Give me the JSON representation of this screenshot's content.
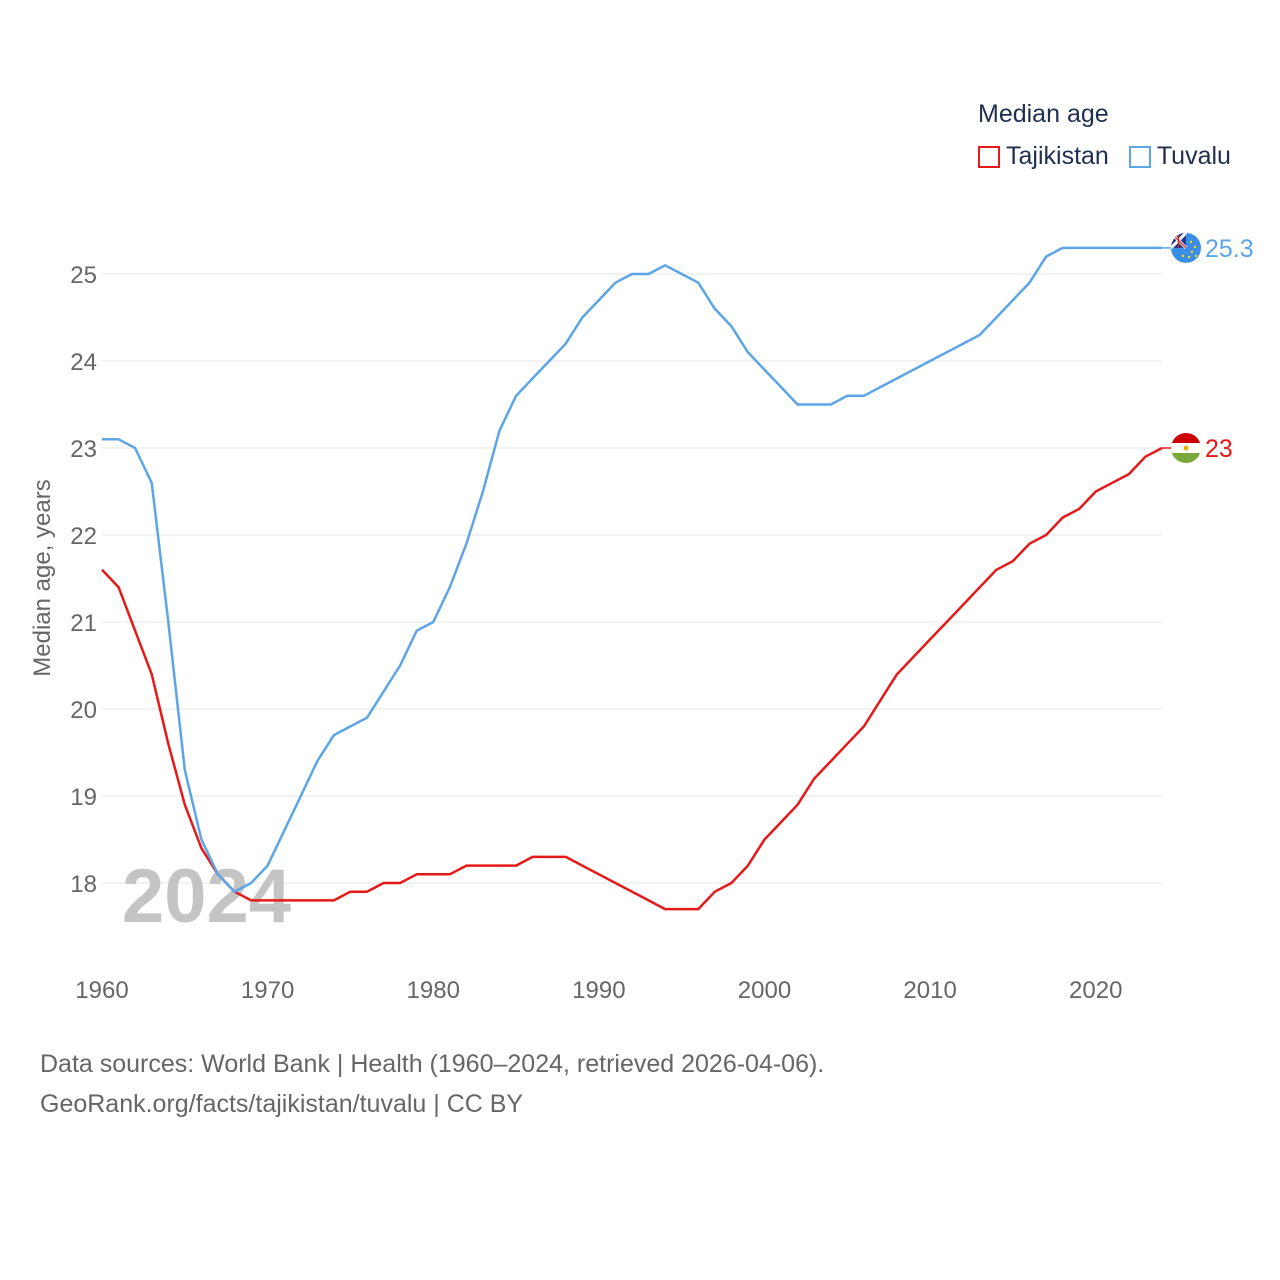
{
  "legend": {
    "title": "Median age",
    "items": [
      {
        "label": "Tajikistan",
        "color": "#e61919"
      },
      {
        "label": "Tuvalu",
        "color": "#5ca5e6"
      }
    ]
  },
  "footer": {
    "line1": "Data sources: World Bank | Health (1960–2024, retrieved 2026-04-06).",
    "line2": "GeoRank.org/facts/tajikistan/tuvalu | CC BY"
  },
  "chart_data": {
    "type": "line",
    "title": "Median age",
    "xlabel": "",
    "ylabel": "Median age, years",
    "year_watermark": "2024",
    "xlim": [
      1960,
      2024
    ],
    "ylim": [
      17.0,
      25.9
    ],
    "x_ticks": [
      1960,
      1970,
      1980,
      1990,
      2000,
      2010,
      2020
    ],
    "y_ticks": [
      18,
      19,
      20,
      21,
      22,
      23,
      24,
      25
    ],
    "grid": true,
    "x": [
      1960,
      1961,
      1962,
      1963,
      1964,
      1965,
      1966,
      1967,
      1968,
      1969,
      1970,
      1971,
      1972,
      1973,
      1974,
      1975,
      1976,
      1977,
      1978,
      1979,
      1980,
      1981,
      1982,
      1983,
      1984,
      1985,
      1986,
      1987,
      1988,
      1989,
      1990,
      1991,
      1992,
      1993,
      1994,
      1995,
      1996,
      1997,
      1998,
      1999,
      2000,
      2001,
      2002,
      2003,
      2004,
      2005,
      2006,
      2007,
      2008,
      2009,
      2010,
      2011,
      2012,
      2013,
      2014,
      2015,
      2016,
      2017,
      2018,
      2019,
      2020,
      2021,
      2022,
      2023,
      2024
    ],
    "series": [
      {
        "name": "Tajikistan",
        "color": "#e61919",
        "end_label": "23",
        "values": [
          21.6,
          21.4,
          20.9,
          20.4,
          19.6,
          18.9,
          18.4,
          18.1,
          17.9,
          17.8,
          17.8,
          17.8,
          17.8,
          17.8,
          17.8,
          17.9,
          17.9,
          18.0,
          18.0,
          18.1,
          18.1,
          18.1,
          18.2,
          18.2,
          18.2,
          18.2,
          18.3,
          18.3,
          18.3,
          18.2,
          18.1,
          18.0,
          17.9,
          17.8,
          17.7,
          17.7,
          17.7,
          17.9,
          18.0,
          18.2,
          18.5,
          18.7,
          18.9,
          19.2,
          19.4,
          19.6,
          19.8,
          20.1,
          20.4,
          20.6,
          20.8,
          21.0,
          21.2,
          21.4,
          21.6,
          21.7,
          21.9,
          22.0,
          22.2,
          22.3,
          22.5,
          22.6,
          22.7,
          22.9,
          23.0
        ]
      },
      {
        "name": "Tuvalu",
        "color": "#5ca5e6",
        "end_label": "25.3",
        "values": [
          23.1,
          23.1,
          23.0,
          22.6,
          21.0,
          19.3,
          18.5,
          18.1,
          17.9,
          18.0,
          18.2,
          18.6,
          19.0,
          19.4,
          19.7,
          19.8,
          19.9,
          20.2,
          20.5,
          20.9,
          21.0,
          21.4,
          21.9,
          22.5,
          23.2,
          23.6,
          23.8,
          24.0,
          24.2,
          24.5,
          24.7,
          24.9,
          25.0,
          25.0,
          25.1,
          25.0,
          24.9,
          24.6,
          24.4,
          24.1,
          23.9,
          23.7,
          23.5,
          23.5,
          23.5,
          23.6,
          23.6,
          23.7,
          23.8,
          23.9,
          24.0,
          24.1,
          24.2,
          24.3,
          24.5,
          24.7,
          24.9,
          25.2,
          25.3,
          25.3,
          25.3,
          25.3,
          25.3,
          25.3,
          25.3
        ]
      }
    ]
  }
}
